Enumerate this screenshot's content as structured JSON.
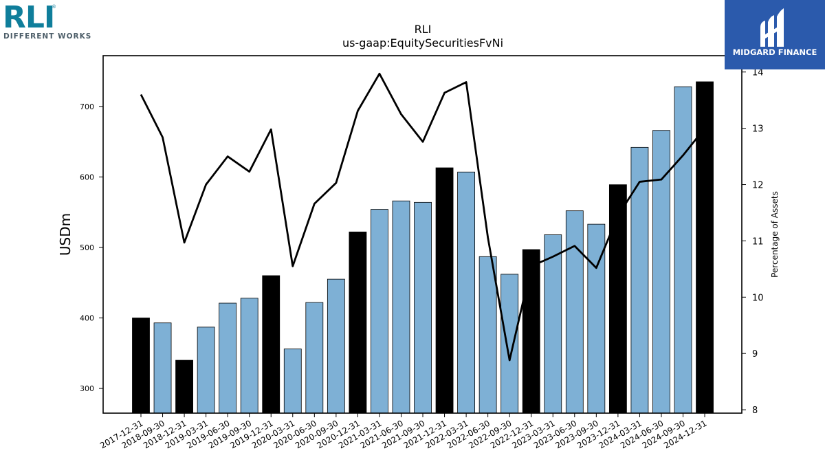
{
  "branding": {
    "company_logo_text": "RLI",
    "company_tagline": "DIFFERENT WORKS",
    "watermark_text": "MIDGARD FINANCE"
  },
  "chart_data": {
    "type": "bar",
    "title": "RLI",
    "subtitle": "us-gaap:EquitySecuritiesFvNi",
    "ylabel": "USDm",
    "y2label": "Percentage of Assets",
    "ylim": [
      265,
      772
    ],
    "y2lim": [
      7.94,
      14.29
    ],
    "yticks": [
      300,
      400,
      500,
      600,
      700
    ],
    "y2ticks": [
      8,
      9,
      10,
      11,
      12,
      13,
      14
    ],
    "categories": [
      "2017-12-31",
      "2018-09-30",
      "2018-12-31",
      "2019-03-31",
      "2019-06-30",
      "2019-09-30",
      "2019-12-31",
      "2020-03-31",
      "2020-06-30",
      "2020-09-30",
      "2020-12-31",
      "2021-03-31",
      "2021-06-30",
      "2021-09-30",
      "2021-12-31",
      "2022-03-31",
      "2022-06-30",
      "2022-09-30",
      "2022-12-31",
      "2023-03-31",
      "2023-06-30",
      "2023-09-30",
      "2023-12-31",
      "2024-03-31",
      "2024-06-30",
      "2024-09-30",
      "2024-12-31"
    ],
    "series": [
      {
        "kind": "bar",
        "values": [
          400,
          393,
          340,
          387,
          421,
          428,
          460,
          356,
          422,
          455,
          522,
          554,
          566,
          564,
          613,
          607,
          487,
          462,
          497,
          518,
          552,
          533,
          589,
          642,
          666,
          728,
          735
        ],
        "highlight": [
          true,
          false,
          true,
          false,
          false,
          false,
          true,
          false,
          false,
          false,
          true,
          false,
          false,
          false,
          true,
          false,
          false,
          false,
          true,
          false,
          false,
          false,
          true,
          false,
          false,
          false,
          true
        ],
        "color": "#7eb0d5",
        "highlight_color": "#000000"
      },
      {
        "kind": "line",
        "axis": "right",
        "values": [
          13.6,
          12.84,
          10.97,
          12.0,
          12.5,
          12.23,
          12.98,
          10.55,
          11.66,
          12.03,
          13.31,
          13.97,
          13.25,
          12.76,
          13.63,
          13.82,
          11.06,
          8.88,
          10.55,
          10.72,
          10.91,
          10.52,
          11.45,
          12.05,
          12.09,
          12.52,
          13.0
        ],
        "color": "#000000"
      }
    ],
    "grid": false,
    "legend": "none"
  }
}
